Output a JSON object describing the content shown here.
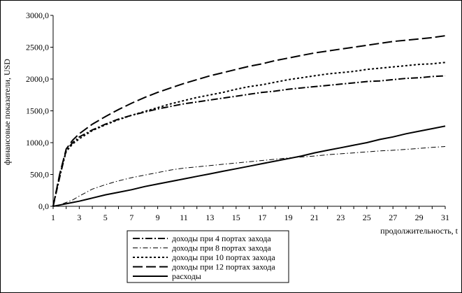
{
  "chart_data": {
    "type": "line",
    "xlabel": "продолжительность, t",
    "ylabel": "финансовые показатели, USD",
    "xlim": [
      1,
      31
    ],
    "ylim": [
      0,
      3000
    ],
    "x_ticks": [
      "1",
      "3",
      "5",
      "7",
      "9",
      "11",
      "13",
      "15",
      "17",
      "19",
      "21",
      "23",
      "25",
      "27",
      "29",
      "31"
    ],
    "y_ticks": [
      "0,0",
      "500,0",
      "1000,0",
      "1500,0",
      "2000,0",
      "2500,0",
      "3000,0"
    ],
    "x_tick_values": [
      1,
      3,
      5,
      7,
      9,
      11,
      13,
      15,
      17,
      19,
      21,
      23,
      25,
      27,
      29,
      31
    ],
    "y_tick_values": [
      0,
      500,
      1000,
      1500,
      2000,
      2500,
      3000
    ],
    "grid": false,
    "legend_position": "bottom-center",
    "x": [
      1,
      1.5,
      2,
      2.5,
      3,
      4,
      5,
      6,
      7,
      8,
      9,
      10,
      11,
      12,
      13,
      14,
      15,
      16,
      17,
      18,
      19,
      20,
      21,
      22,
      23,
      24,
      25,
      26,
      27,
      28,
      29,
      30,
      31
    ],
    "series": [
      {
        "name": "доходы при 4 портах захода",
        "style": "dashdot",
        "values": [
          0,
          450,
          880,
          1000,
          1090,
          1200,
          1290,
          1370,
          1430,
          1480,
          1530,
          1570,
          1610,
          1640,
          1670,
          1700,
          1730,
          1760,
          1790,
          1810,
          1840,
          1860,
          1880,
          1900,
          1920,
          1940,
          1960,
          1970,
          1990,
          2010,
          2020,
          2040,
          2050
        ]
      },
      {
        "name": "доходы при 8 портах захода",
        "style": "dashdotfine",
        "values": [
          0,
          20,
          60,
          100,
          160,
          270,
          340,
          400,
          450,
          490,
          530,
          570,
          600,
          620,
          640,
          660,
          680,
          700,
          720,
          740,
          760,
          775,
          790,
          810,
          825,
          840,
          855,
          870,
          880,
          895,
          910,
          925,
          940
        ]
      },
      {
        "name": "доходы при 10 портах захода",
        "style": "dotted",
        "values": [
          0,
          480,
          860,
          980,
          1060,
          1190,
          1280,
          1360,
          1430,
          1490,
          1550,
          1610,
          1660,
          1710,
          1750,
          1790,
          1840,
          1880,
          1910,
          1950,
          1990,
          2020,
          2050,
          2080,
          2100,
          2120,
          2150,
          2170,
          2190,
          2210,
          2230,
          2240,
          2260
        ]
      },
      {
        "name": "доходы при 12 портах захода",
        "style": "longdash",
        "values": [
          0,
          500,
          900,
          1040,
          1140,
          1290,
          1410,
          1520,
          1620,
          1710,
          1790,
          1860,
          1930,
          1990,
          2050,
          2100,
          2150,
          2200,
          2240,
          2290,
          2330,
          2370,
          2410,
          2440,
          2470,
          2500,
          2530,
          2560,
          2590,
          2610,
          2630,
          2650,
          2680
        ]
      },
      {
        "name": "расходы",
        "style": "solid",
        "values": [
          0,
          20,
          40,
          60,
          80,
          130,
          180,
          220,
          260,
          310,
          350,
          390,
          430,
          470,
          510,
          550,
          590,
          630,
          670,
          710,
          750,
          790,
          840,
          880,
          920,
          960,
          1000,
          1050,
          1090,
          1140,
          1180,
          1220,
          1260
        ]
      }
    ]
  }
}
